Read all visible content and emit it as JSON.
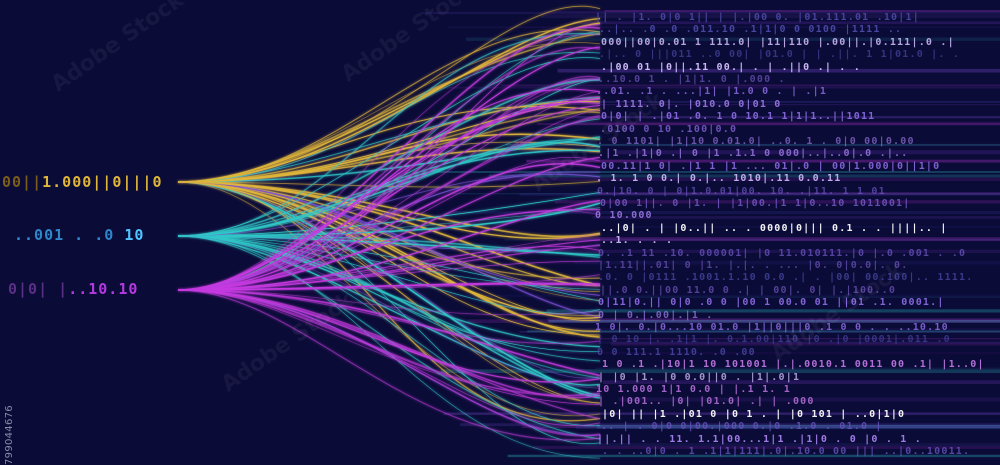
{
  "image": {
    "subject": "Flowing data streams of binary digits and colored lines",
    "colors": {
      "background": "#0b0b38",
      "gold": "#e0b63a",
      "cyan": "#2fc8c8",
      "magenta": "#c53ae0",
      "violet": "#7b4fd6"
    }
  },
  "sources": [
    {
      "dim": "00||",
      "bright": "1.000||0|||0",
      "color": "gold"
    },
    {
      "dim": "..001 . .0",
      "bright": "10",
      "color": "cyan"
    },
    {
      "dim": "0|0|  |",
      "bright": "..10.10",
      "color": "magenta"
    }
  ],
  "stock_id": "799044676",
  "watermark": "Adobe Stock",
  "binary_rows": [
    "|| . |1.  0|0 1||   | |.|00 0.      |01.111.01 .10|1|",
    "..|..  .0 .0  .011.10  .1|1|0   0 0100 |1111 ..  ",
    "000||00|0.01   1 111.0| |11|110  |.00||.|0.111|.0 .|",
    ".|.. 0 |||011 ..0  00|  |01.0 | | .||. 1     1|01.0 |. .",
    "  .|00 01 |0||.11 00.|  . |  .||0  .|    .  . ",
    "  ..10.0 1  . |1|1.   0  |.000  .    ",
    " ..01.  .1 .  ...|1|  |1.0 0 . |  .|1",
    "  |  1111.  0|. |010.0 0|01   0 ",
    "0|0| |  .|01 .0.  1 0 10.1 1|1|1..||1011  ",
    "  .0100 0 10 .100|0.0  ",
    " . 0 1101|  |1|10 0.01.0|  ..0.  1 . 0|0 00|0.00 ",
    ".|1  .|1|0  .|  0  |1 .1.1 0  000|..|..0|.0  .|..",
    "00.11|1 0|  .|1 1 |1 ... 01|.0  | 00|1.000|0||1|0",
    " . 1.  1  0  0.|  0.|..  1010|.11 0.0.11",
    "0.|10. 0  |  0|1.0.01|00. 10. .|11.    1 1 01",
    "0|00 1||. 0 |1. |  |1|00.|1  1|0..10 1011001|",
    "0 10.000   ",
    "  ..|0| . | |0..|| .. .    0000|0||| 0.1  .  . ||||.. |",
    "  ..1.  .  . .   ",
    "  0. .1 11 .10. 000001|  |0 11.010111.|0 |.0 .001 . .0  ",
    "|1.11||.01|    0 |1.  |.|. .  ...  |0. 0|0.0|.  0.",
    ".0. 0 |0111 .1001.1.10  0.0  .|  .  |00|  00.100|.. 1111.",
    "||.0   0.||00  11.0 0 .|    |  00|. 0| |.|100..0",
    "0|11|0.|| 0|0  .0   0  |00 1 00.0 01 ||01 .1. 0001.|",
    "  0 |  0.|.00|.|1  .",
    "1 0|.  0.|0...10 01.0 |1||0|||0 .1    0 0  . .  ..10.10",
    "|  0 10  |. .1|1 |. 0.1.00|110  |0  .|0 |0001|.011  .0",
    "  0 0 111.1 1110.  .0  .00  ",
    "1 0 .1 .|10|1 10 101001 |.|.0010.1 0011 00   .1| |1..0|",
    "|  |0 |1.    |0  0.0||0 .  |1|.0|1",
    "10 1.000  1|1 0.0 |  |.1 1. 1",
    "  |  .|001..  |0|  |01.0|  .| |  .000",
    "|0|   ||  |1 .|01 0   |0 1 .  | |0 101 | ..0|1|0 ",
    "..  |  .  0|0 0|00.|000  0.|0  .1.0 . 01.0 |  ",
    "  ||.|| .   .    11. 1.1|00...1|1 .|1|0  . 0 |0 . 1 . ",
    "  . . ..0|0 . 1  .1|1|111|.0|.10.0 00 |||  ..|0..10011."
  ]
}
